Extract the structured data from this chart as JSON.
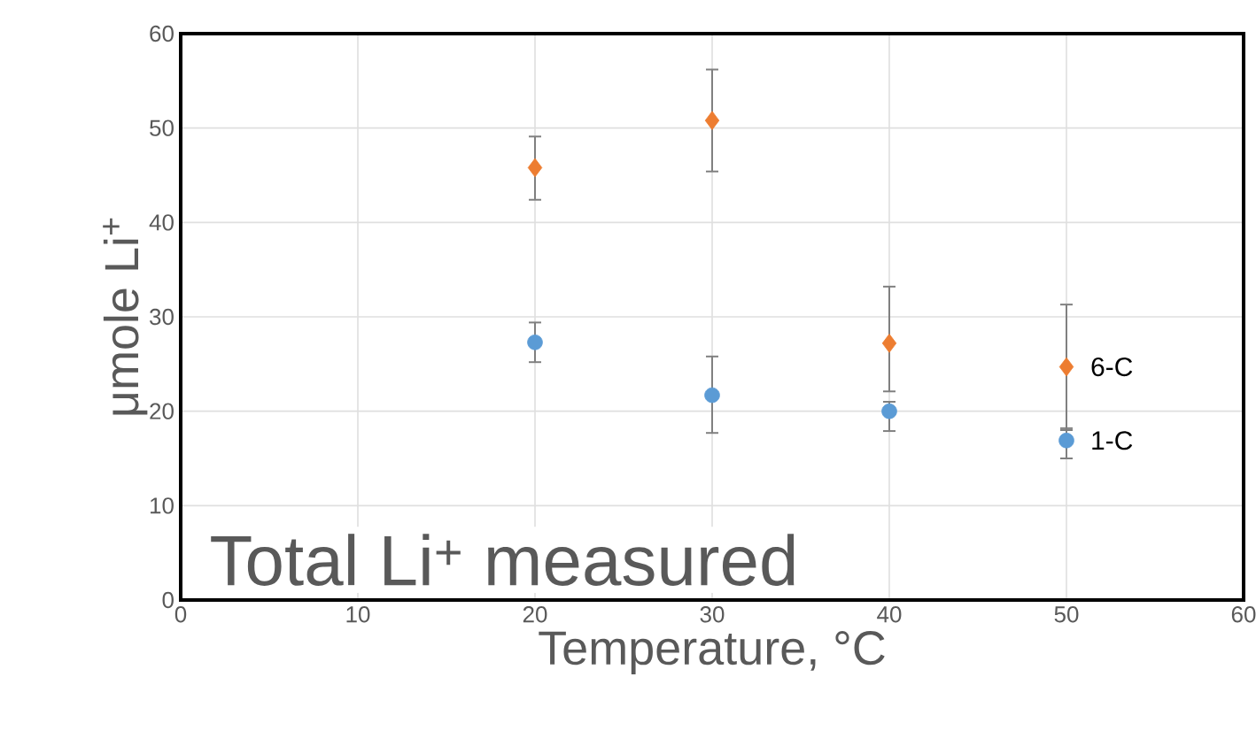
{
  "chart_data": {
    "type": "scatter",
    "xlabel": "Temperature, °C",
    "ylabel": "μmole Li$^{+}$",
    "x": [
      20,
      30,
      40,
      50
    ],
    "series": [
      {
        "name": "6-C",
        "color": "#ed7d31",
        "marker": "diamond",
        "values": [
          45.8,
          50.8,
          27.2,
          24.7
        ],
        "errors": [
          [
            42.4,
            49.1
          ],
          [
            45.4,
            56.2
          ],
          [
            22.1,
            33.2
          ],
          [
            18.0,
            31.3
          ]
        ]
      },
      {
        "name": "1-C",
        "color": "#5b9bd5",
        "marker": "circle",
        "values": [
          27.3,
          21.7,
          20.0,
          16.9
        ],
        "errors": [
          [
            25.2,
            29.4
          ],
          [
            17.7,
            25.8
          ],
          [
            17.9,
            21.0
          ],
          [
            15.0,
            18.2
          ]
        ]
      }
    ],
    "xlim": [
      0,
      60
    ],
    "xticks": [
      0,
      10,
      20,
      30,
      40,
      50,
      60
    ],
    "ylim": [
      0,
      60
    ],
    "yticks": [
      0,
      10,
      20,
      30,
      40,
      50,
      60
    ],
    "grid": true,
    "legend": false,
    "annotations": [
      "Total Li$^{+}$ measured"
    ]
  }
}
